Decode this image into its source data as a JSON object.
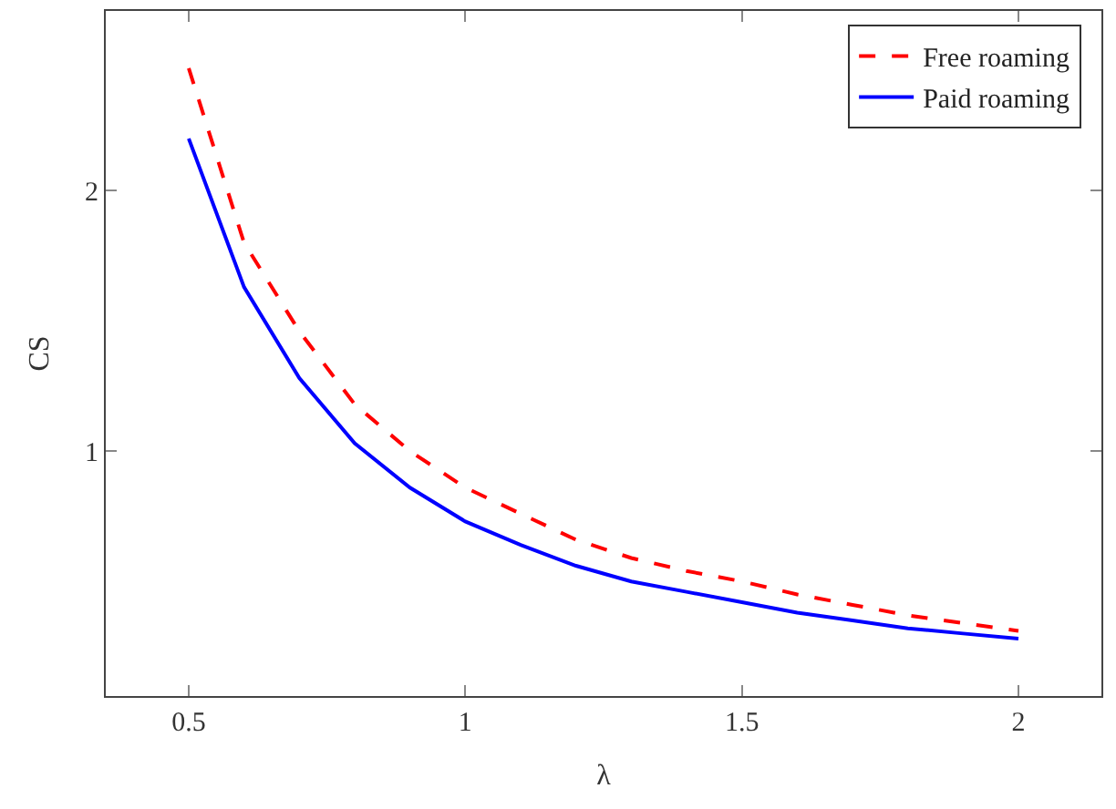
{
  "chart_data": {
    "type": "line",
    "xlabel": "λ",
    "ylabel": "CS",
    "x": [
      0.5,
      0.6,
      0.7,
      0.8,
      0.9,
      1.0,
      1.1,
      1.2,
      1.3,
      1.4,
      1.5,
      1.6,
      1.7,
      1.8,
      1.9,
      2.0
    ],
    "series": [
      {
        "name": "Free roaming",
        "color": "#ff0000",
        "line_style": "dashed",
        "values": [
          2.47,
          1.8,
          1.46,
          1.18,
          1.0,
          0.86,
          0.76,
          0.66,
          0.59,
          0.54,
          0.5,
          0.45,
          0.41,
          0.37,
          0.34,
          0.31
        ]
      },
      {
        "name": "Paid roaming",
        "color": "#0000ff",
        "line_style": "solid",
        "values": [
          2.2,
          1.63,
          1.28,
          1.03,
          0.86,
          0.73,
          0.64,
          0.56,
          0.5,
          0.46,
          0.42,
          0.38,
          0.35,
          0.32,
          0.3,
          0.28
        ]
      }
    ],
    "xlim": [
      0.35,
      2.15
    ],
    "ylim": [
      0.06,
      2.69
    ],
    "xticks": [
      0.5,
      1,
      1.5,
      2
    ],
    "yticks": [
      1,
      2
    ],
    "legend": "top right",
    "marker": "none"
  }
}
